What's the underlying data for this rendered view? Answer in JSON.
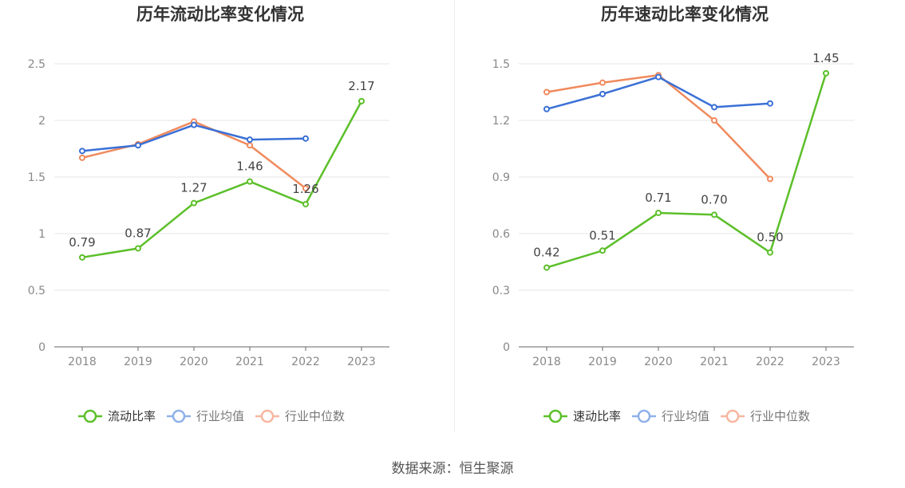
{
  "source_text": "数据来源：恒生聚源",
  "colors": {
    "series_main": "#5cbf2a",
    "industry_avg": "#3a70d6",
    "industry_median": "#f08a5d",
    "legend_avg": "#8fb1ea",
    "legend_median": "#f7b6a0",
    "axis_text": "#888888",
    "grid": "#e6e6e6",
    "title": "#333333"
  },
  "chart_data": [
    {
      "type": "line",
      "title": "历年流动比率变化情况",
      "categories": [
        "2018",
        "2019",
        "2020",
        "2021",
        "2022",
        "2023"
      ],
      "ylim": [
        0,
        2.5
      ],
      "yticks": [
        "0",
        "0.5",
        "1",
        "1.5",
        "2",
        "2.5"
      ],
      "grid": true,
      "legend_position": "bottom",
      "series": [
        {
          "name": "流动比率",
          "values": [
            0.79,
            0.87,
            1.27,
            1.46,
            1.26,
            2.17
          ],
          "labels": [
            "0.79",
            "0.87",
            "1.27",
            "1.46",
            "1.26",
            "2.17"
          ]
        },
        {
          "name": "行业均值",
          "values": [
            1.73,
            1.78,
            1.96,
            1.83,
            1.84,
            null
          ]
        },
        {
          "name": "行业中位数",
          "values": [
            1.67,
            1.79,
            1.99,
            1.78,
            1.4,
            null
          ]
        }
      ]
    },
    {
      "type": "line",
      "title": "历年速动比率变化情况",
      "categories": [
        "2018",
        "2019",
        "2020",
        "2021",
        "2022",
        "2023"
      ],
      "ylim": [
        0,
        1.5
      ],
      "yticks": [
        "0",
        "0.3",
        "0.6",
        "0.9",
        "1.2",
        "1.5"
      ],
      "grid": true,
      "legend_position": "bottom",
      "series": [
        {
          "name": "速动比率",
          "values": [
            0.42,
            0.51,
            0.71,
            0.7,
            0.5,
            1.45
          ],
          "labels": [
            "0.42",
            "0.51",
            "0.71",
            "0.70",
            "0.50",
            "1.45"
          ]
        },
        {
          "name": "行业均值",
          "values": [
            1.26,
            1.34,
            1.43,
            1.27,
            1.29,
            null
          ]
        },
        {
          "name": "行业中位数",
          "values": [
            1.35,
            1.4,
            1.44,
            1.2,
            0.89,
            null
          ]
        }
      ]
    }
  ]
}
